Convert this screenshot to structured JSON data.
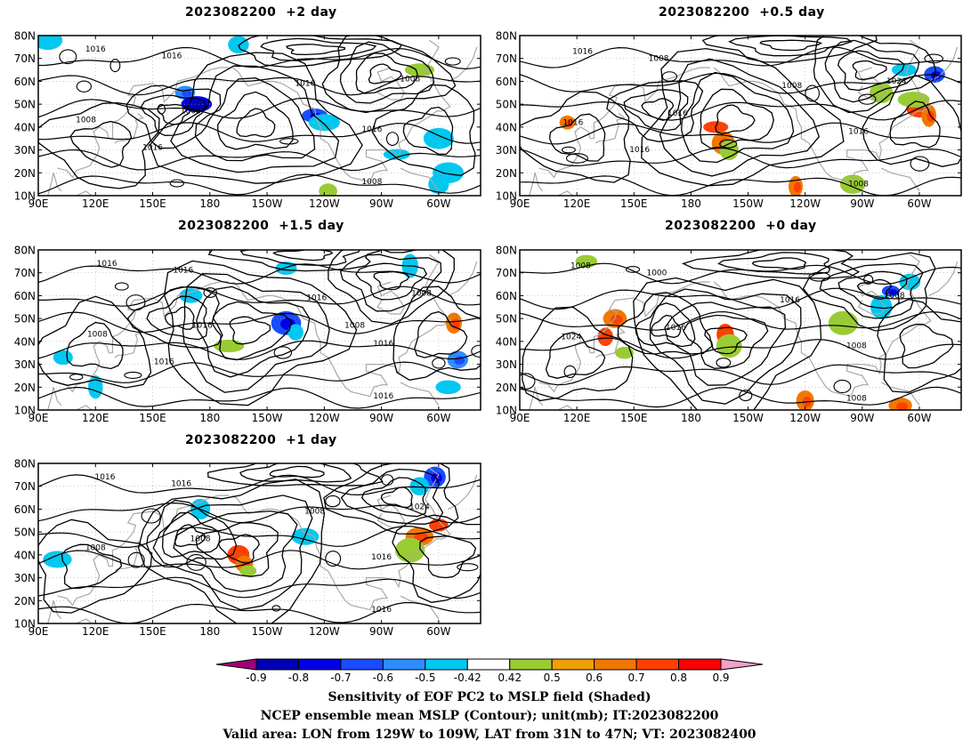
{
  "panels": [
    {
      "title": "2023082200  +2 day",
      "contour_labels": [
        "1016",
        "1016",
        "1016",
        "1008",
        "1016",
        "1008",
        "1008",
        "1008",
        "1016"
      ],
      "shading": [
        {
          "lon": 167,
          "lat": 55,
          "v": -0.6
        },
        {
          "lon": 173,
          "lat": 50,
          "v": -0.8
        },
        {
          "lon": -125,
          "lat": 45,
          "v": -0.7
        },
        {
          "lon": -120,
          "lat": 42,
          "v": -0.5
        },
        {
          "lon": -165,
          "lat": 76,
          "v": -0.5
        },
        {
          "lon": -55,
          "lat": 20,
          "v": -0.5
        },
        {
          "lon": -60,
          "lat": 15,
          "v": -0.5
        },
        {
          "lon": -82,
          "lat": 28,
          "v": -0.5
        },
        {
          "lon": -60,
          "lat": 35,
          "v": -0.5
        },
        {
          "lon": -70,
          "lat": 65,
          "v": 0.45
        },
        {
          "lon": -118,
          "lat": 12,
          "v": 0.45
        },
        {
          "lon": 95,
          "lat": 78,
          "v": -0.5
        }
      ]
    },
    {
      "title": "2023082200  +0.5 day",
      "contour_labels": [
        "1016",
        "1008",
        "1008",
        "1016",
        "1016",
        "1024",
        "1016",
        "1008",
        "1016"
      ],
      "shading": [
        {
          "lon": -167,
          "lat": 40,
          "v": 0.7
        },
        {
          "lon": -163,
          "lat": 33,
          "v": 0.6
        },
        {
          "lon": -160,
          "lat": 30,
          "v": 0.45
        },
        {
          "lon": -60,
          "lat": 48,
          "v": 0.7
        },
        {
          "lon": -63,
          "lat": 52,
          "v": 0.45
        },
        {
          "lon": -55,
          "lat": 45,
          "v": 0.6
        },
        {
          "lon": -52,
          "lat": 63,
          "v": -0.7
        },
        {
          "lon": -68,
          "lat": 65,
          "v": -0.5
        },
        {
          "lon": -125,
          "lat": 14,
          "v": 0.6
        },
        {
          "lon": 115,
          "lat": 42,
          "v": 0.6
        },
        {
          "lon": -95,
          "lat": 15,
          "v": 0.45
        },
        {
          "lon": -80,
          "lat": 55,
          "v": 0.45
        }
      ]
    },
    {
      "title": "2023082200  +1.5 day",
      "contour_labels": [
        "1016",
        "1016",
        "1016",
        "1016",
        "1016",
        "1008",
        "1008",
        "1016",
        "1016",
        "1008"
      ],
      "shading": [
        {
          "lon": -140,
          "lat": 48,
          "v": -0.7
        },
        {
          "lon": -135,
          "lat": 44,
          "v": -0.5
        },
        {
          "lon": -170,
          "lat": 38,
          "v": 0.45
        },
        {
          "lon": -50,
          "lat": 32,
          "v": -0.6
        },
        {
          "lon": -55,
          "lat": 20,
          "v": -0.5
        },
        {
          "lon": -75,
          "lat": 73,
          "v": -0.5
        },
        {
          "lon": -140,
          "lat": 72,
          "v": -0.5
        },
        {
          "lon": 170,
          "lat": 60,
          "v": -0.5
        },
        {
          "lon": -52,
          "lat": 48,
          "v": 0.6
        },
        {
          "lon": 103,
          "lat": 33,
          "v": -0.5
        },
        {
          "lon": 120,
          "lat": 20,
          "v": -0.5
        }
      ]
    },
    {
      "title": "2023082200  +0 day",
      "contour_labels": [
        "1008",
        "1000",
        "1016",
        "1016",
        "1008",
        "1008",
        "1024",
        "1008"
      ],
      "shading": [
        {
          "lon": -162,
          "lat": 43,
          "v": 0.7
        },
        {
          "lon": -160,
          "lat": 38,
          "v": 0.45
        },
        {
          "lon": 140,
          "lat": 50,
          "v": 0.6
        },
        {
          "lon": 135,
          "lat": 42,
          "v": 0.7
        },
        {
          "lon": 145,
          "lat": 35,
          "v": 0.45
        },
        {
          "lon": -75,
          "lat": 62,
          "v": -0.7
        },
        {
          "lon": -80,
          "lat": 55,
          "v": -0.5
        },
        {
          "lon": -65,
          "lat": 66,
          "v": -0.5
        },
        {
          "lon": -120,
          "lat": 14,
          "v": 0.6
        },
        {
          "lon": -70,
          "lat": 12,
          "v": 0.6
        },
        {
          "lon": 125,
          "lat": 75,
          "v": 0.45
        },
        {
          "lon": -100,
          "lat": 48,
          "v": 0.45
        }
      ]
    },
    {
      "title": "2023082200  +1 day",
      "contour_labels": [
        "1016",
        "1016",
        "1008",
        "1008",
        "1016",
        "1024",
        "1008",
        "1016"
      ],
      "shading": [
        {
          "lon": -165,
          "lat": 40,
          "v": 0.7
        },
        {
          "lon": -162,
          "lat": 36,
          "v": 0.6
        },
        {
          "lon": -160,
          "lat": 33,
          "v": 0.45
        },
        {
          "lon": -70,
          "lat": 48,
          "v": 0.6
        },
        {
          "lon": -75,
          "lat": 42,
          "v": 0.45
        },
        {
          "lon": -60,
          "lat": 53,
          "v": 0.7
        },
        {
          "lon": -62,
          "lat": 74,
          "v": -0.7
        },
        {
          "lon": -70,
          "lat": 70,
          "v": -0.5
        },
        {
          "lon": 175,
          "lat": 60,
          "v": -0.5
        },
        {
          "lon": -130,
          "lat": 48,
          "v": -0.5
        },
        {
          "lon": 100,
          "lat": 38,
          "v": -0.5
        }
      ]
    }
  ],
  "axes": {
    "lat_ticks": [
      "80N",
      "70N",
      "60N",
      "50N",
      "40N",
      "30N",
      "20N",
      "10N"
    ],
    "lon_ticks": [
      "90E",
      "120E",
      "150E",
      "180",
      "150W",
      "120W",
      "90W",
      "60W"
    ],
    "lat_range": [
      10,
      80
    ],
    "lon_range_east": [
      90,
      322
    ]
  },
  "colorbar": {
    "ticks": [
      "-0.9",
      "-0.8",
      "-0.7",
      "-0.6",
      "-0.5",
      "-0.42",
      "0.42",
      "0.5",
      "0.6",
      "0.7",
      "0.8",
      "0.9"
    ],
    "colors": [
      "#a0007a",
      "#0000b4",
      "#0000e6",
      "#1a4cff",
      "#2e8cff",
      "#00c8f0",
      "#ffffff",
      "#99cc33",
      "#f0a000",
      "#f07800",
      "#ff4000",
      "#ff0000",
      "#f4a0c8"
    ]
  },
  "caption": {
    "line1": "Sensitivity of EOF PC2 to MSLP field (Shaded)",
    "line2": "NCEP ensemble mean MSLP (Contour); unit(mb); IT:2023082200",
    "line3": "Valid area: LON from 129W to 109W, LAT from 31N to 47N; VT: 2023082400"
  }
}
